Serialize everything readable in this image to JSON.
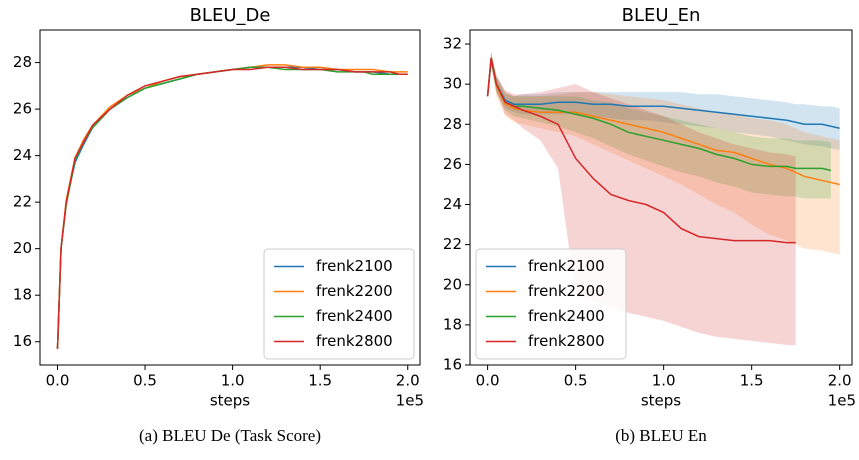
{
  "chart_data": [
    {
      "type": "line",
      "title": "BLEU_De",
      "caption": "(a) BLEU De (Task Score)",
      "xlabel": "steps",
      "x_offset_label": "1e5",
      "x": [
        0,
        0.02,
        0.05,
        0.1,
        0.15,
        0.2,
        0.3,
        0.4,
        0.5,
        0.6,
        0.7,
        0.8,
        0.9,
        1.0,
        1.1,
        1.2,
        1.3,
        1.4,
        1.5,
        1.6,
        1.7,
        1.75,
        1.8,
        1.9,
        1.95,
        2.0
      ],
      "xlim": [
        -0.1,
        2.07
      ],
      "xticks": [
        {
          "value": 0,
          "label": "0.0"
        },
        0.5,
        {
          "value": 1,
          "label": "1.0"
        },
        1.5,
        {
          "value": 2,
          "label": "2.0"
        }
      ],
      "ylim": [
        15.0,
        29.4
      ],
      "yticks": [
        16,
        18,
        20,
        22,
        24,
        26,
        28
      ],
      "legend": "lower right",
      "series": [
        {
          "name": "frenk2100",
          "color": "#1f77b4",
          "values": [
            15.7,
            20,
            22,
            23.7,
            24.5,
            25.2,
            26.0,
            26.5,
            26.9,
            27.1,
            27.3,
            27.5,
            27.6,
            27.7,
            27.8,
            27.8,
            27.8,
            27.8,
            27.7,
            27.7,
            27.6,
            27.6,
            27.6,
            27.5,
            27.5,
            27.5
          ]
        },
        {
          "name": "frenk2200",
          "color": "#ff7f0e",
          "values": [
            15.7,
            20,
            22.1,
            23.9,
            24.7,
            25.3,
            26.1,
            26.6,
            26.9,
            27.2,
            27.4,
            27.5,
            27.6,
            27.7,
            27.8,
            27.9,
            27.9,
            27.8,
            27.8,
            27.7,
            27.7,
            27.7,
            27.7,
            27.6,
            27.6,
            27.6
          ]
        },
        {
          "name": "frenk2400",
          "color": "#2ca02c",
          "values": [
            15.7,
            20,
            21.9,
            23.8,
            24.6,
            25.2,
            26.0,
            26.5,
            26.9,
            27.1,
            27.3,
            27.5,
            27.6,
            27.7,
            27.8,
            27.8,
            27.7,
            27.7,
            27.7,
            27.6,
            27.6,
            27.6,
            27.5,
            27.5,
            27.5,
            27.5
          ]
        },
        {
          "name": "frenk2800",
          "color": "#d62728",
          "values": [
            15.7,
            20,
            22,
            23.9,
            24.6,
            25.3,
            26.0,
            26.6,
            27.0,
            27.2,
            27.4,
            27.5,
            27.6,
            27.7,
            27.7,
            27.8,
            27.8,
            27.7,
            27.7,
            27.7,
            27.6,
            27.6,
            27.6,
            27.6,
            27.5,
            27.5
          ]
        }
      ]
    },
    {
      "type": "line",
      "title": "BLEU_En",
      "caption": "(b) BLEU En",
      "xlabel": "steps",
      "x_offset_label": "1e5",
      "x": [
        0,
        0.02,
        0.05,
        0.1,
        0.15,
        0.2,
        0.3,
        0.4,
        0.5,
        0.6,
        0.7,
        0.8,
        0.9,
        1.0,
        1.1,
        1.2,
        1.3,
        1.4,
        1.5,
        1.6,
        1.7,
        1.75,
        1.8,
        1.9,
        1.95,
        2.0
      ],
      "xlim": [
        -0.1,
        2.07
      ],
      "xticks": [
        {
          "value": 0,
          "label": "0.0"
        },
        0.5,
        {
          "value": 1,
          "label": "1.0"
        },
        1.5,
        {
          "value": 2,
          "label": "2.0"
        }
      ],
      "ylim": [
        16,
        32.7
      ],
      "yticks": [
        16,
        18,
        20,
        22,
        24,
        26,
        28,
        30,
        32
      ],
      "legend": "lower left",
      "series": [
        {
          "name": "frenk2100",
          "color": "#1f77b4",
          "values": [
            29.4,
            31.2,
            30,
            29.2,
            29,
            29,
            29,
            29.1,
            29.1,
            29.0,
            29.0,
            28.9,
            28.9,
            28.9,
            28.8,
            28.7,
            28.6,
            28.5,
            28.4,
            28.3,
            28.2,
            28.1,
            28.0,
            28.0,
            27.9,
            27.8
          ],
          "lower": [
            29.4,
            31,
            29.6,
            28.8,
            28.6,
            28.5,
            28.5,
            28.5,
            28.5,
            28.4,
            28.3,
            28.2,
            28.2,
            28.1,
            28.0,
            27.9,
            27.8,
            27.6,
            27.5,
            27.4,
            27.2,
            27.1,
            27.0,
            26.9,
            26.8,
            26.7
          ],
          "upper": [
            29.4,
            31.5,
            30.4,
            29.6,
            29.4,
            29.5,
            29.5,
            29.6,
            29.6,
            29.6,
            29.6,
            29.6,
            29.6,
            29.6,
            29.6,
            29.5,
            29.5,
            29.4,
            29.3,
            29.2,
            29.1,
            29.0,
            29.0,
            28.9,
            28.9,
            28.8
          ]
        },
        {
          "name": "frenk2200",
          "color": "#ff7f0e",
          "values": [
            29.4,
            31.3,
            29.9,
            29,
            28.8,
            28.7,
            28.6,
            28.6,
            28.6,
            28.4,
            28.2,
            28.0,
            27.8,
            27.6,
            27.3,
            27.0,
            26.7,
            26.6,
            26.3,
            26.0,
            25.8,
            25.6,
            25.4,
            25.2,
            25.1,
            25.0
          ],
          "lower": [
            29.4,
            31,
            29.4,
            28.4,
            28.1,
            28.0,
            27.8,
            27.6,
            27.4,
            27.0,
            26.6,
            26.2,
            25.8,
            25.4,
            25,
            24.5,
            24,
            23.6,
            23,
            22.5,
            22.2,
            22,
            21.8,
            21.7,
            21.6,
            21.5
          ],
          "upper": [
            29.4,
            31.6,
            30.4,
            29.6,
            29.4,
            29.4,
            29.4,
            29.5,
            29.6,
            29.6,
            29.5,
            29.4,
            29.3,
            29.2,
            29.0,
            28.8,
            28.6,
            28.5,
            28.3,
            28.2,
            28.0,
            27.8,
            27.6,
            27.4,
            27.3,
            27.2
          ]
        },
        {
          "name": "frenk2400",
          "color": "#2ca02c",
          "values": [
            29.4,
            31.3,
            30,
            29.1,
            28.9,
            28.9,
            28.8,
            28.7,
            28.5,
            28.3,
            28.0,
            27.6,
            27.4,
            27.2,
            27.0,
            26.8,
            26.5,
            26.3,
            26.0,
            25.9,
            25.9,
            25.8,
            25.8,
            25.8,
            25.7,
            null
          ],
          "lower": [
            29.4,
            31,
            29.6,
            28.7,
            28.4,
            28.3,
            28.1,
            27.9,
            27.6,
            27.3,
            26.9,
            26.5,
            26.2,
            25.9,
            25.6,
            25.4,
            25.1,
            24.9,
            24.6,
            24.5,
            24.4,
            24.4,
            24.3,
            24.3,
            24.3,
            null
          ],
          "upper": [
            29.4,
            31.6,
            30.4,
            29.5,
            29.4,
            29.4,
            29.4,
            29.4,
            29.4,
            29.2,
            29.1,
            28.8,
            28.6,
            28.4,
            28.2,
            28.0,
            27.8,
            27.6,
            27.4,
            27.3,
            27.3,
            27.2,
            27.2,
            27.2,
            27.1,
            null
          ]
        },
        {
          "name": "frenk2800",
          "color": "#d62728",
          "values": [
            29.4,
            31.3,
            30,
            29.1,
            28.9,
            28.7,
            28.4,
            28.0,
            26.3,
            25.3,
            24.5,
            24.2,
            24.0,
            23.6,
            22.8,
            22.4,
            22.3,
            22.2,
            22.2,
            22.2,
            22.1,
            22.1,
            null,
            null,
            null,
            null
          ],
          "lower": [
            29.4,
            31,
            29.6,
            28.5,
            28.2,
            27.8,
            27.2,
            25.8,
            19.5,
            19.2,
            18.9,
            18.6,
            18.4,
            18.2,
            17.9,
            17.6,
            17.4,
            17.3,
            17.2,
            17.1,
            17.0,
            17.0,
            null,
            null,
            null,
            null
          ],
          "upper": [
            29.4,
            31.6,
            30.4,
            29.7,
            29.5,
            29.5,
            29.6,
            29.8,
            30.0,
            29.6,
            29.3,
            29.0,
            28.7,
            28.4,
            28.0,
            27.6,
            27.3,
            27.0,
            26.8,
            26.6,
            26.5,
            26.4,
            null,
            null,
            null,
            null
          ]
        }
      ]
    }
  ]
}
